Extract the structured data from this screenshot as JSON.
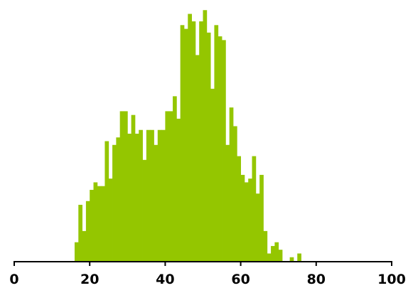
{
  "chart_data": {
    "type": "bar",
    "title": "",
    "xlabel": "",
    "ylabel": "",
    "xlim": [
      0,
      100
    ],
    "ylim": [
      0,
      68
    ],
    "grid": false,
    "bar_color": "#94c600",
    "bin_width": 1,
    "x_ticks": [
      "0",
      "20",
      "40",
      "60",
      "80",
      "100"
    ],
    "x_tick_values": [
      0,
      20,
      40,
      60,
      80,
      100
    ],
    "x": [
      16,
      17,
      18,
      19,
      20,
      21,
      22,
      23,
      24,
      25,
      26,
      27,
      28,
      29,
      30,
      31,
      32,
      33,
      34,
      35,
      36,
      37,
      38,
      39,
      40,
      41,
      42,
      43,
      44,
      45,
      46,
      47,
      48,
      49,
      50,
      51,
      52,
      53,
      54,
      55,
      56,
      57,
      58,
      59,
      60,
      61,
      62,
      63,
      64,
      65,
      66,
      67,
      68,
      69,
      70,
      71,
      72,
      73,
      74,
      75,
      76,
      77,
      78,
      79
    ],
    "values": [
      5,
      15,
      8,
      16,
      19,
      21,
      20,
      20,
      32,
      22,
      31,
      33,
      40,
      40,
      34,
      39,
      34,
      35,
      27,
      35,
      35,
      31,
      35,
      35,
      40,
      40,
      44,
      38,
      63,
      62,
      66,
      64,
      55,
      64,
      67,
      61,
      46,
      63,
      60,
      59,
      31,
      41,
      36,
      28,
      23,
      21,
      22,
      28,
      18,
      23,
      8,
      2,
      4,
      5,
      3,
      0,
      0,
      1,
      0,
      2,
      0,
      0,
      0,
      0
    ]
  }
}
